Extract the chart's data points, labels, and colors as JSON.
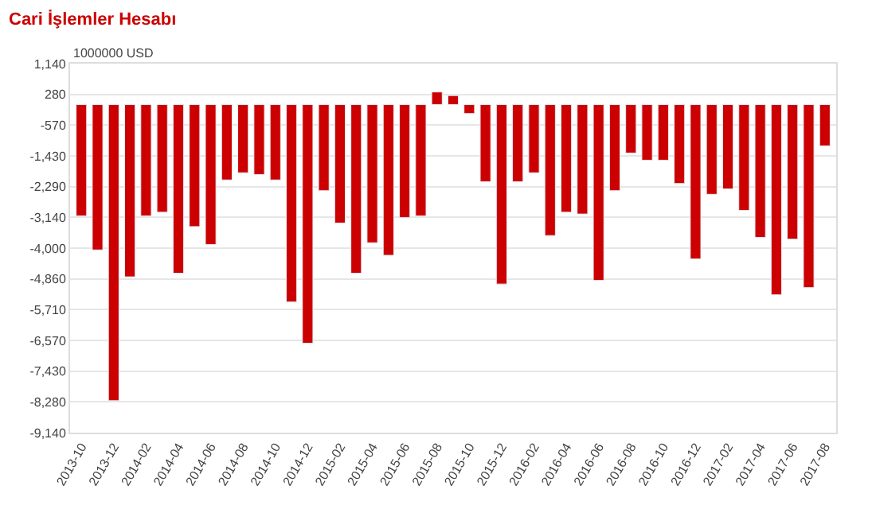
{
  "chart_data": {
    "type": "bar",
    "title": "Cari İşlemler Hesabı",
    "ylabel": "1000000 USD",
    "categories": [
      "2013-10",
      null,
      "2013-12",
      null,
      "2014-02",
      null,
      "2014-04",
      null,
      "2014-06",
      null,
      "2014-08",
      null,
      "2014-10",
      null,
      "2014-12",
      null,
      "2015-02",
      null,
      "2015-04",
      null,
      "2015-06",
      null,
      "2015-08",
      null,
      "2015-10",
      null,
      "2015-12",
      null,
      "2016-02",
      null,
      "2016-04",
      null,
      "2016-06",
      null,
      "2016-08",
      null,
      "2016-10",
      null,
      "2016-12",
      null,
      "2017-02",
      null,
      "2017-04",
      null,
      "2017-06",
      null,
      "2017-08"
    ],
    "series": [
      {
        "color": "#cc0000",
        "values": [
          -3100,
          -4050,
          -8250,
          -4800,
          -3100,
          -3000,
          -4700,
          -3400,
          -3900,
          -2100,
          -1900,
          -1950,
          -2100,
          -5500,
          -6650,
          -2400,
          -3300,
          -4700,
          -3850,
          -4200,
          -3150,
          -3100,
          350,
          250,
          -250,
          -2150,
          -5000,
          -2150,
          -1900,
          -3650,
          -3000,
          -3050,
          -4900,
          -2400,
          -1350,
          -1550,
          -1550,
          -2200,
          -4300,
          -2500,
          -2350,
          -2950,
          -3700,
          -5300,
          -3750,
          -5100,
          -1150
        ]
      }
    ],
    "ylim": [
      -9140,
      1140
    ],
    "yticks": [
      {
        "value": 1140,
        "label": "1,140"
      },
      280,
      -570,
      {
        "value": -1430,
        "label": "-1,430"
      },
      {
        "value": -2290,
        "label": "-2,290"
      },
      {
        "value": -3140,
        "label": "-3,140"
      },
      {
        "value": -4000,
        "label": "-4,000"
      },
      {
        "value": -4860,
        "label": "-4,860"
      },
      {
        "value": -5710,
        "label": "-5,710"
      },
      {
        "value": -6570,
        "label": "-6,570"
      },
      {
        "value": -7430,
        "label": "-7,430"
      },
      {
        "value": -8280,
        "label": "-8,280"
      },
      {
        "value": -9140,
        "label": "-9,140"
      }
    ],
    "grid": "y"
  }
}
